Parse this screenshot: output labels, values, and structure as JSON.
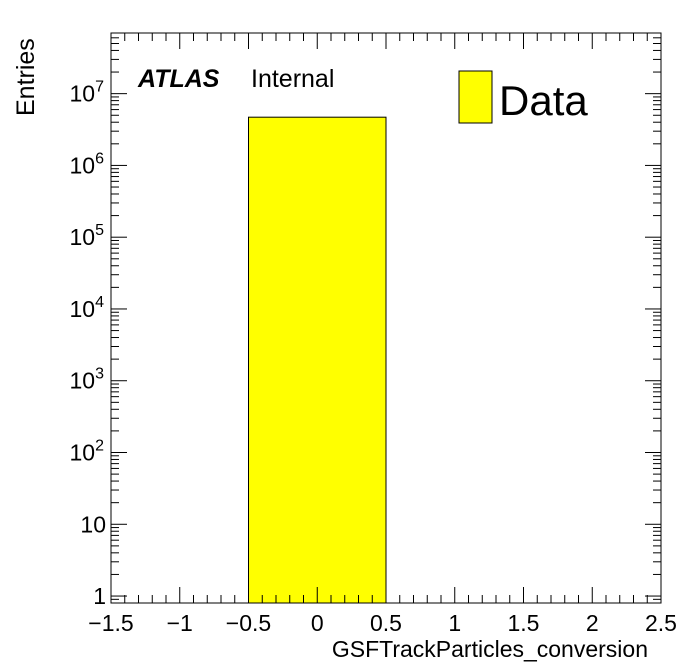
{
  "chart_data": {
    "type": "bar",
    "histogram": true,
    "xlabel": "GSFTrackParticles_conversion",
    "ylabel": "Entries",
    "xlim": [
      -1.5,
      2.5
    ],
    "ylim": [
      0.8,
      70000000
    ],
    "y_scale": "log",
    "x_ticks": [
      -1.5,
      -1,
      -0.5,
      0,
      0.5,
      1,
      1.5,
      2,
      2.5
    ],
    "x_tick_labels": [
      "−1.5",
      "−1",
      "−0.5",
      "0",
      "0.5",
      "1",
      "1.5",
      "2",
      "2.5"
    ],
    "y_ticks": [
      {
        "value": 1,
        "base": "1",
        "exp": ""
      },
      {
        "value": 10,
        "base": "10",
        "exp": ""
      },
      {
        "value": 100,
        "base": "10",
        "exp": "2"
      },
      {
        "value": 1000,
        "base": "10",
        "exp": "3"
      },
      {
        "value": 10000,
        "base": "10",
        "exp": "4"
      },
      {
        "value": 100000,
        "base": "10",
        "exp": "5"
      },
      {
        "value": 1000000,
        "base": "10",
        "exp": "6"
      },
      {
        "value": 10000000,
        "base": "10",
        "exp": "7"
      }
    ],
    "bins": [
      {
        "low": -0.5,
        "high": 0.5,
        "value": 4700000
      }
    ],
    "series": [
      {
        "name": "Data",
        "color": "#ffff00"
      }
    ],
    "legend_position": "top-right",
    "grid": false
  },
  "annotation": {
    "experiment": "ATLAS",
    "status": "Internal"
  }
}
